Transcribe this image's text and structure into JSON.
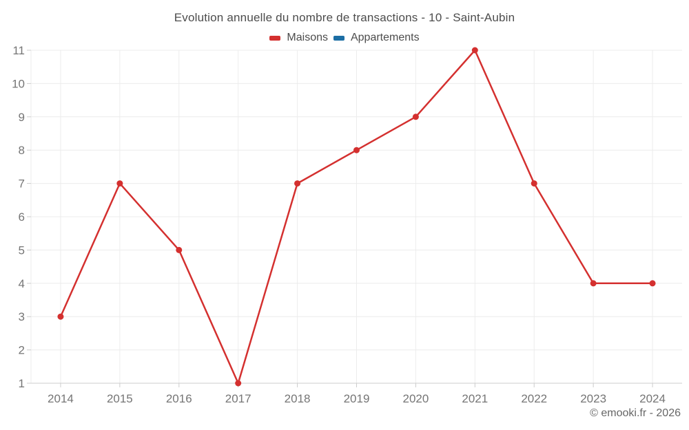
{
  "page": {
    "copyright": "© emooki.fr - 2026"
  },
  "chart_data": {
    "type": "line",
    "title": "Evolution annuelle du nombre de transactions - 10 - Saint-Aubin",
    "categories": [
      "2014",
      "2015",
      "2016",
      "2017",
      "2018",
      "2019",
      "2020",
      "2021",
      "2022",
      "2023",
      "2024"
    ],
    "series": [
      {
        "name": "Maisons",
        "color": "#d4302f",
        "values": [
          3,
          7,
          5,
          1,
          7,
          8,
          9,
          11,
          7,
          4,
          4
        ]
      },
      {
        "name": "Appartements",
        "color": "#1c6ea4",
        "values": []
      }
    ],
    "xlabel": "",
    "ylabel": "",
    "ylim": [
      1,
      11
    ],
    "yticks": [
      1,
      2,
      3,
      4,
      5,
      6,
      7,
      8,
      9,
      10,
      11
    ],
    "grid": true,
    "legend_position": "top",
    "marker": "circle"
  },
  "theme": {
    "background": "#ffffff",
    "grid_color": "#ececec",
    "axis_line_color": "#cccccc",
    "tick_color": "#cccccc",
    "axis_label_color": "#757575",
    "title_color": "#4c4c4c",
    "legend_text_color": "#4c4c4c",
    "copyright_color": "#666666"
  }
}
